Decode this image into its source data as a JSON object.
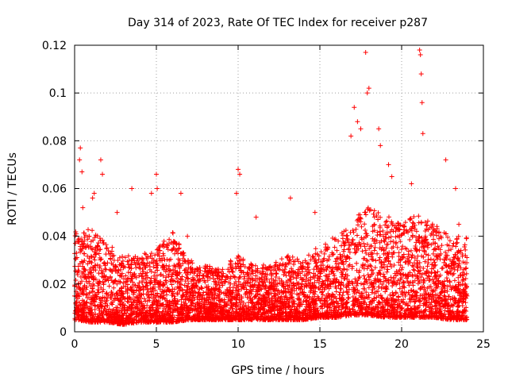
{
  "chart_data": {
    "type": "scatter",
    "title": "Day 314 of 2023, Rate Of TEC Index for receiver p287",
    "xlabel": "GPS time / hours",
    "ylabel": "ROTI / TECUs",
    "xlim": [
      0,
      25
    ],
    "ylim": [
      0,
      0.12
    ],
    "x_ticks": [
      "0",
      "5",
      "10",
      "15",
      "20",
      "25"
    ],
    "y_ticks": [
      "0",
      "0.02",
      "0.04",
      "0.06",
      "0.08",
      "0.1",
      "0.12"
    ],
    "grid": true,
    "marker": "+",
    "series": [
      {
        "name": "ROTI",
        "color": "#ff0000",
        "x": [
          0.0,
          0.3,
          0.35,
          0.45,
          0.5,
          1.1,
          1.2,
          1.6,
          1.7,
          2.6,
          3.5,
          4.7,
          5.0,
          5.05,
          6.5,
          6.9,
          9.9,
          10.0,
          10.1,
          11.1,
          13.2,
          14.7,
          16.9,
          17.1,
          17.3,
          17.5,
          17.8,
          17.9,
          18.0,
          18.6,
          18.7,
          19.2,
          19.4,
          20.6,
          21.1,
          21.15,
          21.2,
          21.25,
          21.3,
          22.7,
          23.3,
          23.5,
          24.0
        ],
        "y": [
          0.015,
          0.072,
          0.077,
          0.067,
          0.052,
          0.056,
          0.058,
          0.072,
          0.066,
          0.05,
          0.06,
          0.058,
          0.066,
          0.06,
          0.058,
          0.04,
          0.058,
          0.068,
          0.066,
          0.048,
          0.056,
          0.05,
          0.082,
          0.094,
          0.088,
          0.085,
          0.117,
          0.1,
          0.102,
          0.085,
          0.078,
          0.07,
          0.065,
          0.062,
          0.118,
          0.116,
          0.108,
          0.096,
          0.083,
          0.072,
          0.06,
          0.045,
          0.015
        ]
      }
    ],
    "hourly_range": {
      "hours": [
        0,
        1,
        2,
        3,
        4,
        5,
        6,
        7,
        8,
        9,
        10,
        11,
        12,
        13,
        14,
        15,
        16,
        17,
        18,
        19,
        20,
        21,
        22,
        23
      ],
      "low": [
        0.005,
        0.004,
        0.004,
        0.003,
        0.004,
        0.004,
        0.004,
        0.005,
        0.005,
        0.005,
        0.005,
        0.005,
        0.005,
        0.005,
        0.005,
        0.006,
        0.006,
        0.007,
        0.007,
        0.006,
        0.006,
        0.006,
        0.006,
        0.005
      ],
      "high": [
        0.042,
        0.043,
        0.038,
        0.032,
        0.032,
        0.035,
        0.042,
        0.03,
        0.028,
        0.026,
        0.033,
        0.028,
        0.028,
        0.032,
        0.03,
        0.037,
        0.04,
        0.046,
        0.055,
        0.05,
        0.045,
        0.05,
        0.045,
        0.04
      ]
    }
  }
}
